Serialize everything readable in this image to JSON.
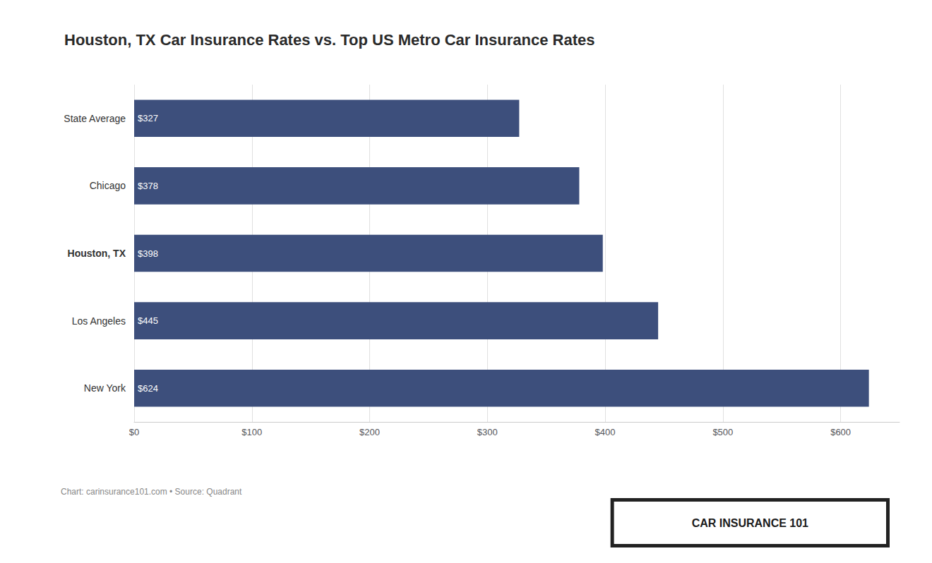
{
  "chart_data": {
    "type": "bar",
    "title": "Houston, TX Car Insurance Rates vs. Top US Metro Car Insurance Rates",
    "orientation": "horizontal",
    "categories": [
      "New York",
      "Los Angeles",
      "Houston, TX",
      "Chicago",
      "State Average"
    ],
    "values": [
      624,
      445,
      398,
      378,
      327
    ],
    "value_labels": [
      "$624",
      "$445",
      "$398",
      "$378",
      "$327"
    ],
    "data_labels": true,
    "color": "#3d4f7c",
    "xlim": [
      0,
      650
    ],
    "xticks": [
      {
        "value": 0,
        "label": "$0"
      },
      {
        "value": 100,
        "label": "$100"
      },
      {
        "value": 200,
        "label": "$200"
      },
      {
        "value": 300,
        "label": "$300"
      },
      {
        "value": 400,
        "label": "$400"
      },
      {
        "value": 500,
        "label": "$500"
      },
      {
        "value": 600,
        "label": "$600"
      }
    ],
    "grid": true,
    "annotations": [
      "Chart: carinsurance101.com • Source: Quadrant",
      "CAR INSURANCE 101"
    ]
  }
}
